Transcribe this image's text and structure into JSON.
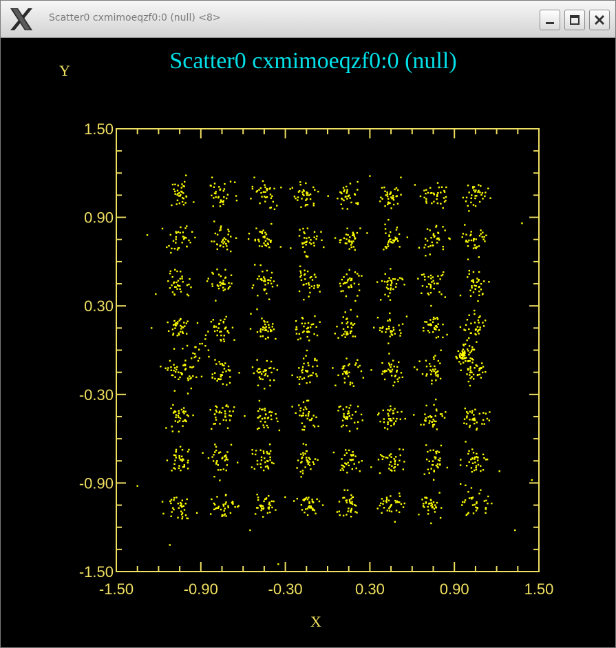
{
  "window": {
    "title": "Scatter0 cxmimoeqzf0:0 (null) <8>",
    "buttons": [
      {
        "name": "minimize",
        "icon": "minimize-icon"
      },
      {
        "name": "maximize",
        "icon": "maximize-icon"
      },
      {
        "name": "close",
        "icon": "close-icon"
      }
    ],
    "app_icon": "x-logo-icon"
  },
  "colors": {
    "background": "#000000",
    "title": "#00e0e8",
    "axis": "#f0e060",
    "points": "#ffff00",
    "titlebar_text": "#7a7a7a"
  },
  "chart_data": {
    "type": "scatter",
    "title": "Scatter0 cxmimoeqzf0:0 (null)",
    "xlabel": "X",
    "ylabel": "Y",
    "xlim": [
      -1.5,
      1.5
    ],
    "ylim": [
      -1.5,
      1.5
    ],
    "xticks": [
      "-1.50",
      "-0.90",
      "-0.30",
      "0.30",
      "0.90",
      "1.50"
    ],
    "yticks": [
      "1.50",
      "0.90",
      "0.30",
      "-0.30",
      "-0.90",
      "-1.50"
    ],
    "grid": false,
    "series": [
      {
        "cluster_centers_x": [
          -1.05,
          -0.75,
          -0.45,
          -0.15,
          0.15,
          0.45,
          0.75,
          1.05
        ],
        "cluster_centers_y": [
          1.05,
          0.75,
          0.45,
          0.15,
          -0.15,
          -0.45,
          -0.75,
          -1.05
        ],
        "points_per_cluster": 34,
        "cluster_spread": 0.045,
        "dense_cluster": {
          "x": 0.97,
          "y": -0.03
        },
        "outliers": [
          [
            -1.28,
            0.78
          ],
          [
            -1.22,
            0.38
          ],
          [
            -1.25,
            0.15
          ],
          [
            -1.12,
            -1.32
          ],
          [
            -0.35,
            -1.45
          ],
          [
            -0.82,
            1.17
          ],
          [
            -0.52,
            1.17
          ],
          [
            0.52,
            1.17
          ],
          [
            0.62,
            1.12
          ],
          [
            1.38,
            0.86
          ],
          [
            1.22,
            -0.82
          ],
          [
            1.45,
            -0.88
          ],
          [
            1.33,
            -1.22
          ],
          [
            -1.35,
            -0.92
          ],
          [
            0.3,
            1.18
          ],
          [
            -0.55,
            -1.22
          ],
          [
            -1.1,
            -0.55
          ],
          [
            1.15,
            -0.42
          ],
          [
            0.98,
            -0.62
          ],
          [
            -0.25,
            1.1
          ]
        ]
      }
    ]
  }
}
